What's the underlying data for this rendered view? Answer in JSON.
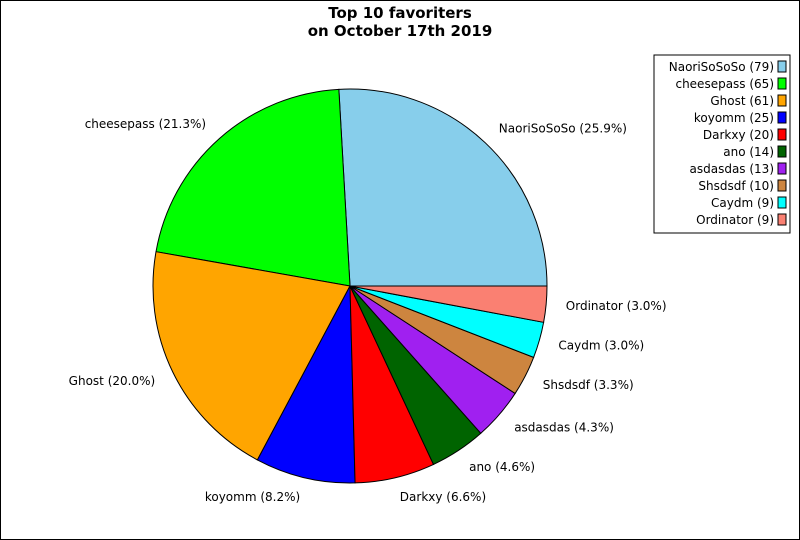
{
  "chart_data": {
    "type": "pie",
    "title_lines": [
      "Top 10 favoriters",
      "on October 17th 2019"
    ],
    "slices": [
      {
        "name": "NaoriSoSoSo",
        "value": 79,
        "label": "NaoriSoSoSo (25.9%)",
        "legend": "NaoriSoSoSo (79)",
        "color": "#87ceeb"
      },
      {
        "name": "cheesepass",
        "value": 65,
        "label": "cheesepass (21.3%)",
        "legend": "cheesepass (65)",
        "color": "#00ff00"
      },
      {
        "name": "Ghost",
        "value": 61,
        "label": "Ghost (20.0%)",
        "legend": "Ghost (61)",
        "color": "#ffa500"
      },
      {
        "name": "koyomm",
        "value": 25,
        "label": "koyomm (8.2%)",
        "legend": "koyomm (25)",
        "color": "#0000ff"
      },
      {
        "name": "Darkxy",
        "value": 20,
        "label": "Darkxy (6.6%)",
        "legend": "Darkxy (20)",
        "color": "#ff0000"
      },
      {
        "name": "ano",
        "value": 14,
        "label": "ano (4.6%)",
        "legend": "ano (14)",
        "color": "#006400"
      },
      {
        "name": "asdasdas",
        "value": 13,
        "label": "asdasdas (4.3%)",
        "legend": "asdasdas (13)",
        "color": "#a020f0"
      },
      {
        "name": "Shsdsdf",
        "value": 10,
        "label": "Shsdsdf (3.3%)",
        "legend": "Shsdsdf (10)",
        "color": "#cd853f"
      },
      {
        "name": "Caydm",
        "value": 9,
        "label": "Caydm (3.0%)",
        "legend": "Caydm (9)",
        "color": "#00ffff"
      },
      {
        "name": "Ordinator",
        "value": 9,
        "label": "Ordinator (3.0%)",
        "legend": "Ordinator (9)",
        "color": "#fa8072"
      }
    ],
    "start_angle_deg": 0,
    "direction": "counterclockwise",
    "legend_position": "top-right"
  }
}
